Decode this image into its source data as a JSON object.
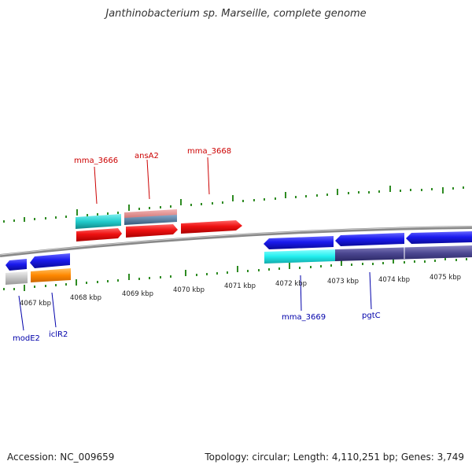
{
  "header": {
    "title": "Janthinobacterium sp. Marseille, complete genome"
  },
  "footer": {
    "accession": "Accession: NC_009659",
    "summary": "Topology: circular; Length: 4,110,251 bp; Genes: 3,749"
  },
  "kbp_labels": [
    "4067 kbp",
    "4068 kbp",
    "4069 kbp",
    "4070 kbp",
    "4071 kbp",
    "4072 kbp",
    "4073 kbp",
    "4074 kbp",
    "4075 kbp"
  ],
  "gene_labels": {
    "forward": [
      {
        "name": "mma_3666",
        "color": "#cc0000"
      },
      {
        "name": "ansA2",
        "color": "#cc0000"
      },
      {
        "name": "mma_3668",
        "color": "#cc0000"
      }
    ],
    "reverse": [
      {
        "name": "modE2",
        "color": "#0000aa"
      },
      {
        "name": "iclR2",
        "color": "#0000aa"
      },
      {
        "name": "mma_3669",
        "color": "#0000aa"
      },
      {
        "name": "pgtC",
        "color": "#0000aa"
      }
    ]
  },
  "colors": {
    "forward_gene": "#ee1111",
    "reverse_gene": "#1a1aee",
    "cyan_feature": "#22cccc",
    "pink_feature": "#e08a8a",
    "steel_feature": "#4d7a9e",
    "grey_feature": "#bbbbbb",
    "orange_feature": "#ff8800",
    "purple_feature": "#4b4690",
    "tick": "#2e8b22",
    "backbone": "#888888"
  }
}
